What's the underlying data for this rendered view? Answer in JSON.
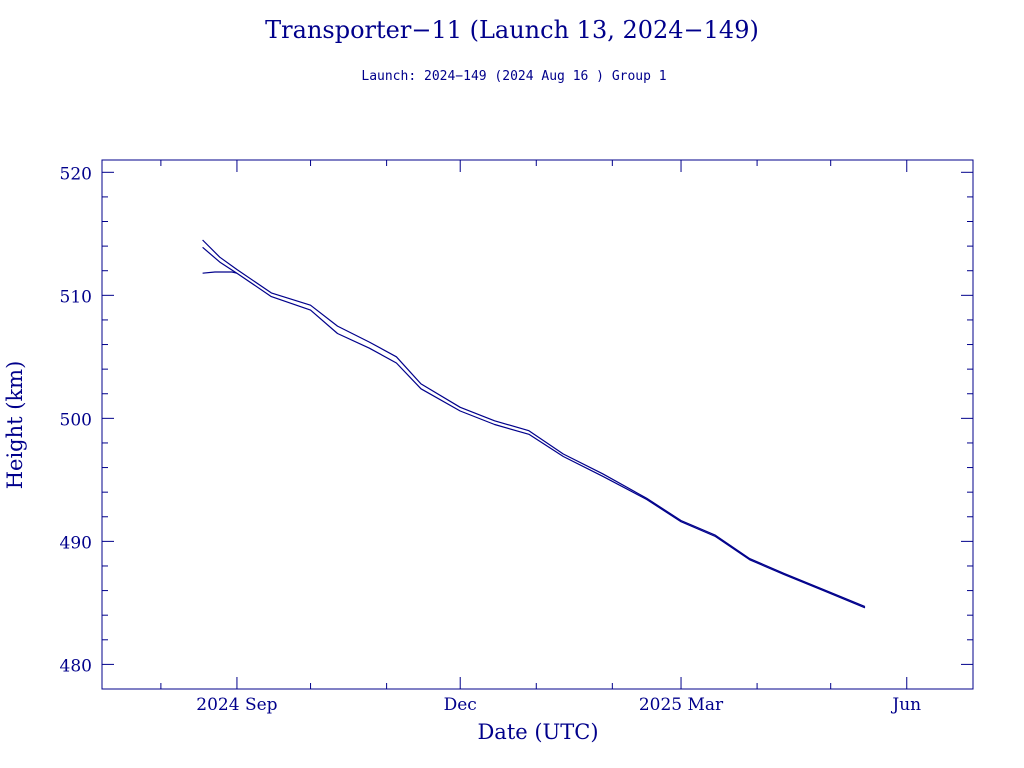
{
  "colors": {
    "axis": "#00008b",
    "series": "#00008b",
    "background": "#ffffff"
  },
  "chart_data": {
    "type": "line",
    "title": "Transporter−11 (Launch 13, 2024−149)",
    "subtitle": "Launch: 2024−149  (2024 Aug 16 )  Group 1",
    "xlabel": "Date (UTC)",
    "ylabel": "Height (km)",
    "xlim": [
      "2024-07-08",
      "2025-06-28"
    ],
    "ylim": [
      478,
      521
    ],
    "yticks": [
      480,
      490,
      500,
      510,
      520
    ],
    "xticks": [
      {
        "date": "2024-09-01",
        "label": "2024 Sep"
      },
      {
        "date": "2024-12-01",
        "label": "Dec"
      },
      {
        "date": "2025-03-01",
        "label": "2025 Mar"
      },
      {
        "date": "2025-06-01",
        "label": "Jun"
      }
    ],
    "grid": false,
    "series": [
      {
        "x": [
          "2024-08-18",
          "2024-08-25",
          "2024-09-01",
          "2024-09-15",
          "2024-10-01",
          "2024-10-12",
          "2024-10-25",
          "2024-11-05",
          "2024-11-15",
          "2024-12-01",
          "2024-12-15",
          "2024-12-29",
          "2025-01-12",
          "2025-01-28",
          "2025-02-15",
          "2025-03-01",
          "2025-03-15",
          "2025-03-29",
          "2025-04-12",
          "2025-04-28",
          "2025-05-15"
        ],
        "y": [
          514.5,
          513.1,
          512.1,
          510.2,
          509.2,
          507.5,
          506.2,
          505.0,
          502.8,
          500.9,
          499.8,
          499.0,
          497.1,
          495.5,
          493.5,
          491.7,
          490.5,
          488.6,
          487.4,
          486.1,
          484.7
        ]
      },
      {
        "x": [
          "2024-08-18",
          "2024-08-25",
          "2024-09-01",
          "2024-09-15",
          "2024-10-01",
          "2024-10-12",
          "2024-10-25",
          "2024-11-05",
          "2024-11-15",
          "2024-12-01",
          "2024-12-15",
          "2024-12-29",
          "2025-01-12",
          "2025-01-28",
          "2025-02-15",
          "2025-03-01",
          "2025-03-15",
          "2025-03-29",
          "2025-04-12",
          "2025-04-28",
          "2025-05-15"
        ],
        "y": [
          513.9,
          512.7,
          511.8,
          509.9,
          508.8,
          506.9,
          505.7,
          504.5,
          502.4,
          500.6,
          499.5,
          498.7,
          496.9,
          495.3,
          493.4,
          491.6,
          490.4,
          488.5,
          487.3,
          486.0,
          484.6
        ]
      },
      {
        "x": [
          "2024-08-18",
          "2024-08-23",
          "2024-08-30",
          "2024-09-01"
        ],
        "y": [
          511.8,
          511.9,
          511.9,
          511.8
        ]
      }
    ]
  }
}
